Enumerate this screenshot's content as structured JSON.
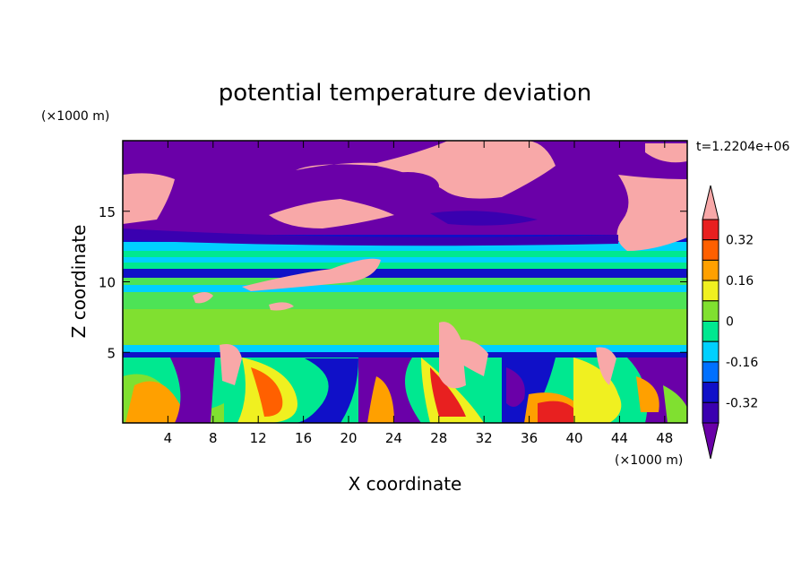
{
  "chart_data": {
    "type": "heatmap",
    "title": "potential temperature deviation",
    "xlabel": "X coordinate",
    "ylabel": "Z coordinate",
    "x_unit": "(×1000 m)",
    "y_unit": "(×1000 m)",
    "time_label": "t=1.2204e+06",
    "xlim": [
      0,
      50
    ],
    "ylim": [
      0,
      20
    ],
    "x_ticks": [
      4,
      8,
      12,
      16,
      20,
      24,
      28,
      32,
      36,
      40,
      44,
      48
    ],
    "y_ticks": [
      5,
      10,
      15
    ],
    "x_tick_labels": [
      "4",
      "8",
      "12",
      "16",
      "20",
      "24",
      "28",
      "32",
      "36",
      "40",
      "44",
      "48"
    ],
    "y_tick_labels": [
      "5",
      "10",
      "15"
    ],
    "colorbar": {
      "colors": [
        "#6a00a8",
        "#3a00b0",
        "#1010c8",
        "#0070ff",
        "#00d0ff",
        "#00e890",
        "#80e030",
        "#f0f020",
        "#ffa000",
        "#ff6000",
        "#e82020",
        "#f8a8a8"
      ],
      "labels": [
        "0.32",
        "0.16",
        "0",
        "-0.16",
        "-0.32"
      ],
      "label_levels": [
        0.32,
        0.16,
        0,
        -0.16,
        -0.32
      ],
      "min": -0.4,
      "max": 0.4
    },
    "layers": [
      {
        "z": [
          0,
          2.5
        ],
        "value": "mixed",
        "desc_colors": [
          "#80e030",
          "#f0f020",
          "#ffa000",
          "#e82020",
          "#6a00a8"
        ]
      },
      {
        "z": [
          4.7,
          5.0
        ],
        "value": -0.32
      },
      {
        "z": [
          5.5,
          8.2
        ],
        "value": 0.0
      },
      {
        "z": [
          10.2,
          10.7
        ],
        "value": -0.32
      },
      {
        "z": [
          12.4,
          12.9
        ],
        "value": -0.32
      },
      {
        "z": [
          13.5,
          20
        ],
        "value": -0.4
      }
    ],
    "grid": false,
    "legend": "right"
  }
}
